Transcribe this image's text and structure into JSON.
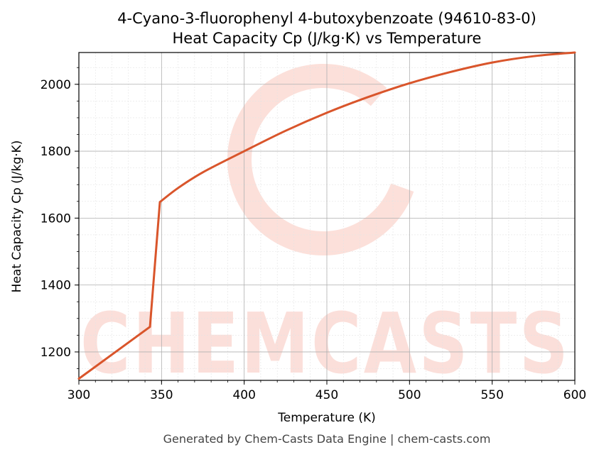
{
  "chart_data": {
    "type": "line",
    "title": "4-Cyano-3-fluorophenyl 4-butoxybenzoate (94610-83-0)",
    "subtitle": "Heat Capacity Cp (J/kg·K) vs Temperature",
    "xlabel": "Temperature (K)",
    "ylabel": "Heat Capacity Cp (J/kg·K)",
    "xlim": [
      300,
      600
    ],
    "ylim": [
      1115,
      2095
    ],
    "x_ticks": [
      300,
      350,
      400,
      450,
      500,
      550,
      600
    ],
    "y_ticks": [
      1200,
      1400,
      1600,
      1800,
      2000
    ],
    "grid": true,
    "line_color": "#d9552b",
    "series": [
      {
        "x": [
          300,
          343,
          349,
          360,
          375,
          400,
          425,
          450,
          475,
          500,
          525,
          550,
          575,
          600
        ],
        "y": [
          1120,
          1275,
          1648,
          1690,
          1737,
          1800,
          1861,
          1915,
          1962,
          2003,
          2037,
          2065,
          2084,
          2095
        ]
      }
    ]
  },
  "watermark": "CHEMCASTS",
  "footer": "Generated by Chem-Casts Data Engine | chem-casts.com"
}
